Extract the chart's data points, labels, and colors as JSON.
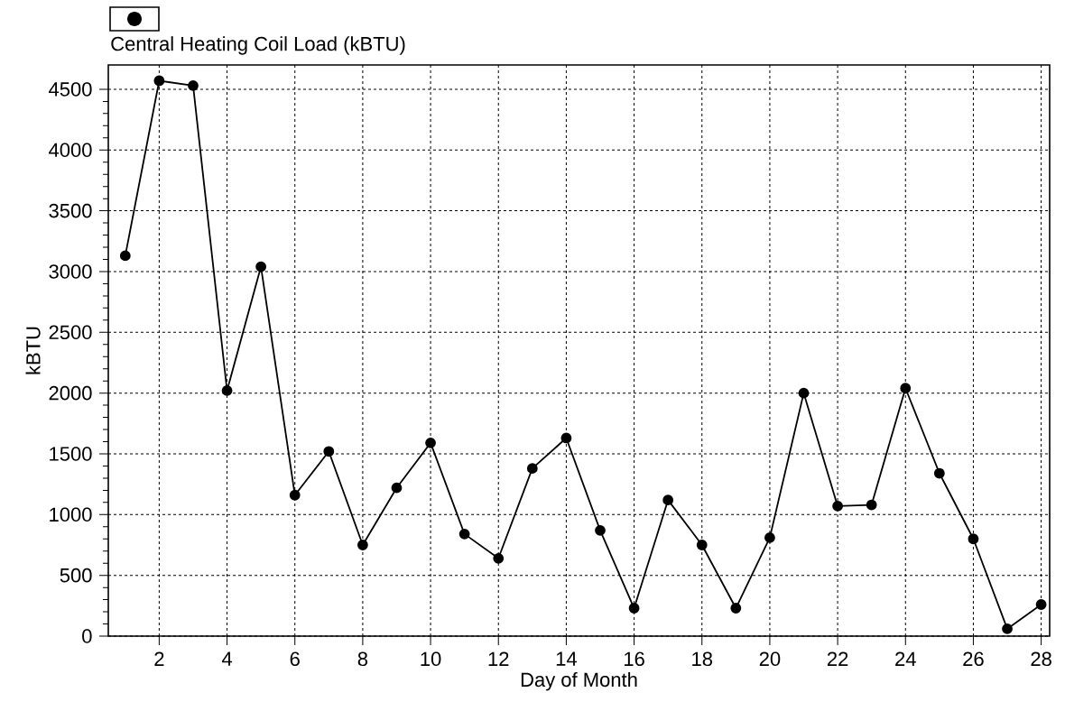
{
  "chart_data": {
    "type": "line",
    "xlabel": "Day of Month",
    "ylabel": "kBTU",
    "x": [
      1,
      2,
      3,
      4,
      5,
      6,
      7,
      8,
      9,
      10,
      11,
      12,
      13,
      14,
      15,
      16,
      17,
      18,
      19,
      20,
      21,
      22,
      23,
      24,
      25,
      26,
      27,
      28
    ],
    "series": [
      {
        "name": "Central Heating Coil Load (kBTU)",
        "color": "#000000",
        "values": [
          3130,
          4570,
          4530,
          2020,
          3040,
          1160,
          1520,
          750,
          1220,
          1590,
          840,
          640,
          1380,
          1630,
          870,
          230,
          1120,
          750,
          230,
          810,
          2000,
          1070,
          1080,
          2040,
          1340,
          800,
          60,
          260
        ]
      }
    ],
    "xlim": [
      0.5,
      28.25
    ],
    "ylim": [
      0,
      4700
    ],
    "xticks": [
      2,
      4,
      6,
      8,
      10,
      12,
      14,
      16,
      18,
      20,
      22,
      24,
      26,
      28
    ],
    "yticks": [
      0,
      500,
      1000,
      1500,
      2000,
      2500,
      3000,
      3500,
      4000,
      4500
    ],
    "grid": true,
    "legend": "top left",
    "marker": "circle"
  }
}
